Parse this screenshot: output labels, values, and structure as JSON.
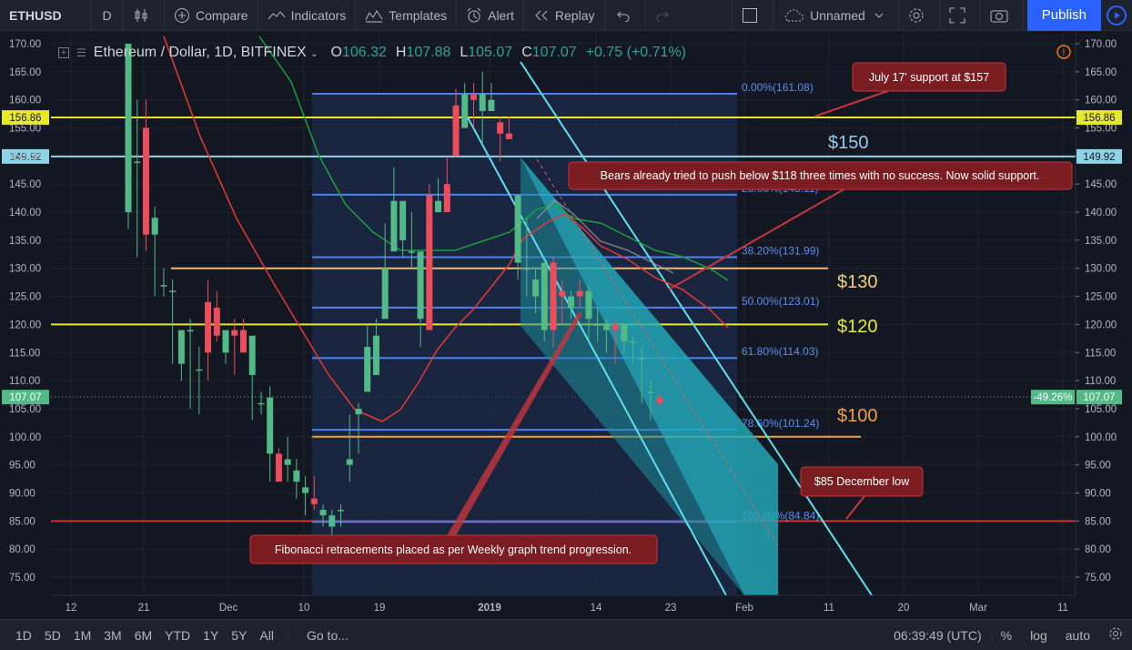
{
  "toolbar": {
    "symbol": "ETHUSD",
    "interval": "D",
    "compare": "Compare",
    "indicators": "Indicators",
    "templates": "Templates",
    "alert": "Alert",
    "replay": "Replay",
    "layout_name": "Unnamed",
    "publish": "Publish"
  },
  "legend": {
    "title": "Ethereum / Dollar, 1D, BITFINEX",
    "open_label": "O",
    "open": "106.32",
    "high_label": "H",
    "high": "107.88",
    "low_label": "L",
    "low": "105.07",
    "close_label": "C",
    "close": "107.07",
    "change": "+0.75 (+0.71%)"
  },
  "annotations": {
    "july_support": "July 17' support at $157",
    "bears": "Bears already tried to push below $118 three times with no success. Now solid support.",
    "december_low": "$85 December low",
    "fibonacci": "Fibonacci retracements placed as per Weekly graph trend progression.",
    "label_150": "$150",
    "label_130": "$130",
    "label_120": "$120",
    "label_100": "$100"
  },
  "fib_levels": [
    {
      "label": "0.00%(161.08)",
      "price": 161.08
    },
    {
      "label": "23.60%(143.11)",
      "price": 143.11
    },
    {
      "label": "38.20%(131.99)",
      "price": 131.99
    },
    {
      "label": "50.00%(123.01)",
      "price": 123.01
    },
    {
      "label": "61.80%(114.03)",
      "price": 114.03
    },
    {
      "label": "78.60%(101.24)",
      "price": 101.24
    },
    {
      "label": "100.00%(84.84)",
      "price": 84.84
    }
  ],
  "price_axis": {
    "ticks": [
      "170.00",
      "165.00",
      "160.00",
      "155.00",
      "150.00",
      "145.00",
      "140.00",
      "135.00",
      "130.00",
      "125.00",
      "120.00",
      "115.00",
      "110.00",
      "105.00",
      "100.00",
      "95.00",
      "90.00",
      "85.00",
      "80.00",
      "75.00"
    ],
    "highlight_156": "156.86",
    "highlight_150": "149.92",
    "last_price": "107.07",
    "percent_badge": "-49.26%"
  },
  "time_axis": {
    "ticks": [
      "12",
      "21",
      "Dec",
      "10",
      "19",
      "2019",
      "14",
      "23",
      "Feb",
      "11",
      "20",
      "Mar",
      "11"
    ]
  },
  "horizontal_lines": [
    {
      "name": "july-support",
      "price": 156.86,
      "color": "#e8e82a"
    },
    {
      "name": "150-level",
      "price": 149.92,
      "color": "#8fd3e8"
    },
    {
      "name": "130-level",
      "price": 130.0,
      "color": "#f0b96e"
    },
    {
      "name": "120-level",
      "price": 120.0,
      "color": "#e8e82a"
    },
    {
      "name": "100-level",
      "price": 100.0,
      "color": "#f0a03a"
    },
    {
      "name": "85-level",
      "price": 85.0,
      "color": "#d32f2f"
    }
  ],
  "colors": {
    "up": "#53b987",
    "down": "#eb4d5c",
    "fib_line": "#4f7ff0",
    "channel": "#26c6da",
    "ma_red": "#e53935",
    "ma_green": "#1b9e3e",
    "accent": "#2962ff"
  },
  "bottombar": {
    "ranges": [
      "1D",
      "5D",
      "1M",
      "3M",
      "6M",
      "YTD",
      "1Y",
      "5Y",
      "All"
    ],
    "goto": "Go to...",
    "time": "06:39:49 (UTC)",
    "percent": "%",
    "log": "log",
    "auto": "auto"
  }
}
